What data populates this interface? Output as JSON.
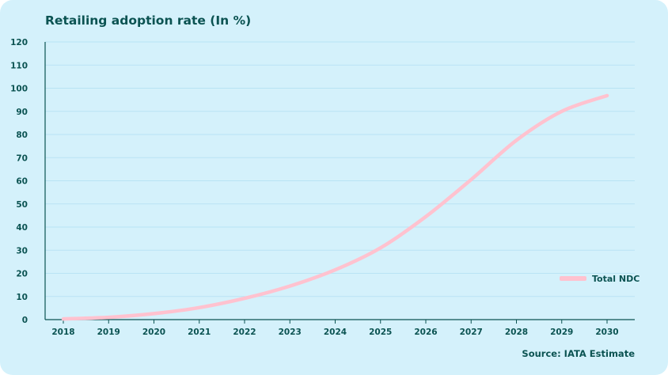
{
  "colors": {
    "background": "#d4f1fb",
    "text": "#0b5352",
    "grid": "#b9e3f4",
    "axis": "#0b5352",
    "series": "#ffc2cf"
  },
  "footer": {
    "source": "Source: IATA Estimate"
  },
  "chart_data": {
    "type": "line",
    "title": "Retailing adoption rate (In %)",
    "xlabel": "",
    "ylabel": "",
    "categories": [
      "2018",
      "2019",
      "2020",
      "2021",
      "2022",
      "2023",
      "2024",
      "2025",
      "2026",
      "2027",
      "2028",
      "2029",
      "2030"
    ],
    "ylim": [
      0,
      120
    ],
    "yticks": [
      0,
      10,
      20,
      30,
      40,
      50,
      60,
      70,
      80,
      90,
      100,
      110,
      120
    ],
    "grid": true,
    "legend_position": "right",
    "series": [
      {
        "name": "Total NDC",
        "color": "#ffc2cf",
        "values": [
          0.3,
          1,
          2.6,
          5.2,
          9.2,
          14.5,
          21.5,
          31,
          44.5,
          60.5,
          77.5,
          90,
          96.8
        ]
      }
    ]
  }
}
